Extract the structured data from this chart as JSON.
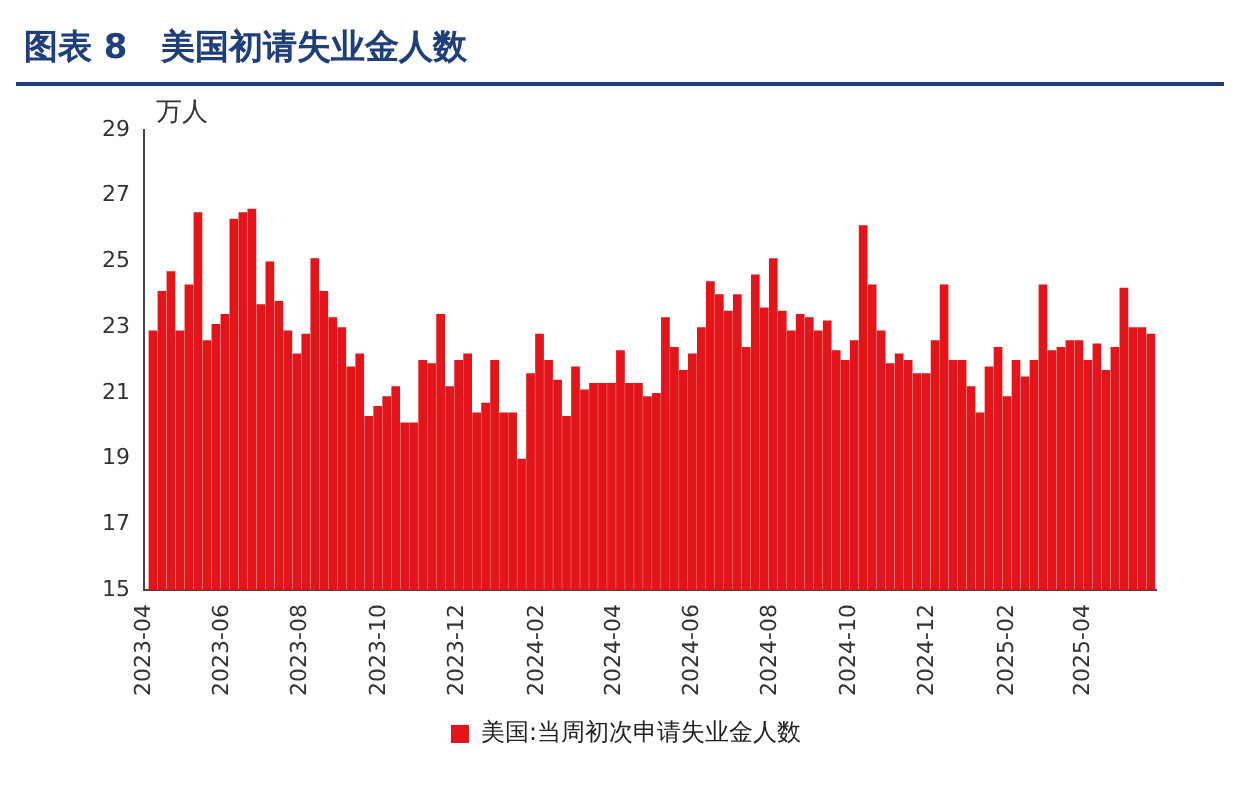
{
  "chart_data": {
    "type": "bar",
    "title": "图表 8　美国初请失业金人数",
    "ylabel": "万人",
    "x": [
      "2023-04-08",
      "2023-04-15",
      "2023-04-22",
      "2023-04-29",
      "2023-05-06",
      "2023-05-13",
      "2023-05-20",
      "2023-05-27",
      "2023-06-03",
      "2023-06-10",
      "2023-06-17",
      "2023-06-24",
      "2023-07-01",
      "2023-07-08",
      "2023-07-15",
      "2023-07-22",
      "2023-07-29",
      "2023-08-05",
      "2023-08-12",
      "2023-08-19",
      "2023-08-26",
      "2023-09-02",
      "2023-09-09",
      "2023-09-16",
      "2023-09-23",
      "2023-09-30",
      "2023-10-07",
      "2023-10-14",
      "2023-10-21",
      "2023-10-28",
      "2023-11-04",
      "2023-11-11",
      "2023-11-18",
      "2023-11-25",
      "2023-12-02",
      "2023-12-09",
      "2023-12-16",
      "2023-12-23",
      "2023-12-30",
      "2024-01-06",
      "2024-01-13",
      "2024-01-20",
      "2024-01-27",
      "2024-02-03",
      "2024-02-10",
      "2024-02-17",
      "2024-02-24",
      "2024-03-02",
      "2024-03-09",
      "2024-03-16",
      "2024-03-23",
      "2024-03-30",
      "2024-04-06",
      "2024-04-13",
      "2024-04-20",
      "2024-04-27",
      "2024-05-04",
      "2024-05-11",
      "2024-05-18",
      "2024-05-25",
      "2024-06-01",
      "2024-06-08",
      "2024-06-15",
      "2024-06-22",
      "2024-06-29",
      "2024-07-06",
      "2024-07-13",
      "2024-07-20",
      "2024-07-27",
      "2024-08-03",
      "2024-08-10",
      "2024-08-17",
      "2024-08-24",
      "2024-08-31",
      "2024-09-07",
      "2024-09-14",
      "2024-09-21",
      "2024-09-28",
      "2024-10-05",
      "2024-10-12",
      "2024-10-19",
      "2024-10-26",
      "2024-11-02",
      "2024-11-09",
      "2024-11-16",
      "2024-11-23",
      "2024-11-30",
      "2024-12-07",
      "2024-12-14",
      "2024-12-21",
      "2024-12-28",
      "2025-01-04",
      "2025-01-11",
      "2025-01-18",
      "2025-01-25",
      "2025-02-01",
      "2025-02-08",
      "2025-02-15",
      "2025-02-22",
      "2025-03-01",
      "2025-03-08",
      "2025-03-15",
      "2025-03-22",
      "2025-03-29",
      "2025-04-05",
      "2025-04-12",
      "2025-04-19",
      "2025-04-26",
      "2025-05-03",
      "2025-05-10",
      "2025-05-17",
      "2025-05-24"
    ],
    "series": [
      {
        "name": "美国:当周初次申请失业金人数",
        "color": "#e3151a",
        "values": [
          22.9,
          24.1,
          24.7,
          22.9,
          24.3,
          26.5,
          22.6,
          23.1,
          23.4,
          26.3,
          26.5,
          26.6,
          23.7,
          25.0,
          23.8,
          22.9,
          22.2,
          22.8,
          25.1,
          24.1,
          23.3,
          23.0,
          21.8,
          22.2,
          20.3,
          20.6,
          20.9,
          21.2,
          20.1,
          20.1,
          22.0,
          21.9,
          23.4,
          21.2,
          22.0,
          22.2,
          20.4,
          20.7,
          22.0,
          20.4,
          20.4,
          19.0,
          21.6,
          22.8,
          22.0,
          21.4,
          20.3,
          21.8,
          21.1,
          21.3,
          21.3,
          21.3,
          22.3,
          21.3,
          21.3,
          20.9,
          21.0,
          23.3,
          22.4,
          21.7,
          22.2,
          23.0,
          24.4,
          24.0,
          23.5,
          24.0,
          22.4,
          24.6,
          23.6,
          25.1,
          23.5,
          22.9,
          23.4,
          23.3,
          22.9,
          23.2,
          22.3,
          22.0,
          22.6,
          26.1,
          24.3,
          22.9,
          21.9,
          22.2,
          22.0,
          21.6,
          21.6,
          22.6,
          24.3,
          22.0,
          22.0,
          21.2,
          20.4,
          21.8,
          22.4,
          20.9,
          22.0,
          21.5,
          22.0,
          24.3,
          22.3,
          22.4,
          22.6,
          22.6,
          22.0,
          22.5,
          21.7,
          22.4,
          24.2,
          23.0,
          23.0,
          22.8
        ]
      }
    ],
    "xlim": [
      "2023-04-01",
      "2025-05-28"
    ],
    "xticks": [
      "2023-04",
      "2023-06",
      "2023-08",
      "2023-10",
      "2023-12",
      "2024-02",
      "2024-04",
      "2024-06",
      "2024-08",
      "2024-10",
      "2024-12",
      "2025-02",
      "2025-04"
    ],
    "ylim": [
      15,
      29
    ],
    "yticks": [
      15,
      17,
      19,
      21,
      23,
      25,
      27,
      29
    ],
    "grid": false,
    "legend": "bottom"
  }
}
